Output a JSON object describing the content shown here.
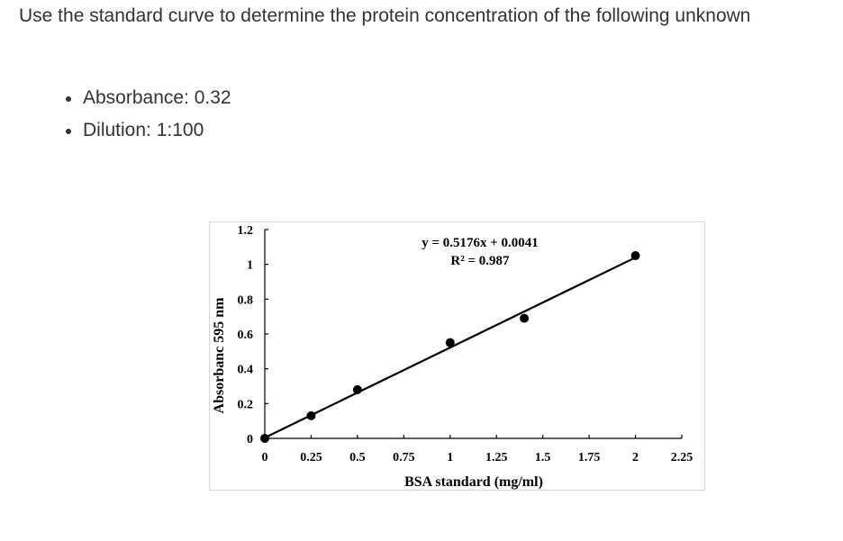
{
  "question": {
    "text": "Use the standard curve to determine the protein concentration of the following unknown"
  },
  "bullets": [
    "Absorbance: 0.32",
    "Dilution: 1:100"
  ],
  "chart_data": {
    "type": "scatter",
    "xlabel": "BSA standard (mg/ml)",
    "ylabel": "Absorbanc 595 nm",
    "xlim": [
      0,
      2.25
    ],
    "ylim": [
      0,
      1.2
    ],
    "x_ticks": [
      "0",
      "0.25",
      "0.5",
      "0.75",
      "1",
      "1.25",
      "1.5",
      "1.75",
      "2",
      "2.25"
    ],
    "y_ticks": [
      "0",
      "0.2",
      "0.4",
      "0.6",
      "0.8",
      "1",
      "1.2"
    ],
    "points": [
      {
        "x": 0,
        "y": 0
      },
      {
        "x": 0.25,
        "y": 0.13
      },
      {
        "x": 0.5,
        "y": 0.28
      },
      {
        "x": 1,
        "y": 0.55
      },
      {
        "x": 1.4,
        "y": 0.69
      },
      {
        "x": 2,
        "y": 1.05
      }
    ],
    "trendline": {
      "slope": 0.5176,
      "intercept": 0.0041,
      "x_range": [
        0,
        2
      ]
    },
    "equation": "y = 0.5176x + 0.0041",
    "r_squared": "R² = 0.987",
    "grid": false,
    "legend": "none"
  }
}
